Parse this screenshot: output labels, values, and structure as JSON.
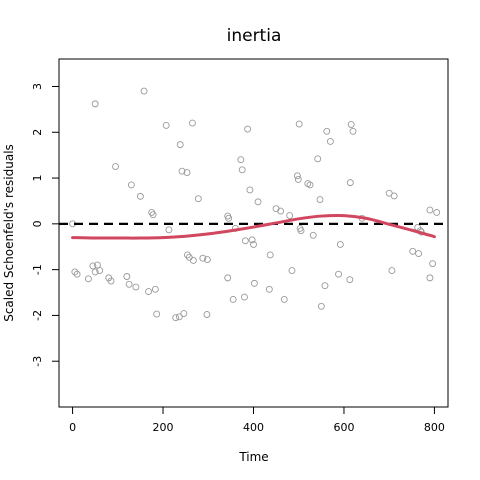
{
  "chart_data": {
    "type": "scatter",
    "title": "inertia",
    "xlabel": "Time",
    "ylabel": "Scaled Schoenfeld's residuals",
    "xlim": [
      -30,
      830
    ],
    "ylim": [
      -4,
      3.6
    ],
    "x_ticks": [
      0,
      200,
      400,
      600,
      800
    ],
    "y_ticks": [
      -3,
      -2,
      -1,
      0,
      1,
      2,
      3
    ],
    "grid": false,
    "reference_line_y": 0,
    "colors": {
      "points": "#9a9a9a",
      "smooth": "#d1475f",
      "reference": "#000000"
    },
    "points": [
      {
        "x": 0,
        "y": 0.0
      },
      {
        "x": 5,
        "y": -1.05
      },
      {
        "x": 10,
        "y": -1.1
      },
      {
        "x": 35,
        "y": -1.2
      },
      {
        "x": 45,
        "y": -0.92
      },
      {
        "x": 50,
        "y": 2.62
      },
      {
        "x": 50,
        "y": -1.05
      },
      {
        "x": 55,
        "y": -0.9
      },
      {
        "x": 60,
        "y": -1.02
      },
      {
        "x": 80,
        "y": -1.18
      },
      {
        "x": 85,
        "y": -1.25
      },
      {
        "x": 95,
        "y": 1.25
      },
      {
        "x": 120,
        "y": -1.15
      },
      {
        "x": 125,
        "y": -1.32
      },
      {
        "x": 130,
        "y": 0.85
      },
      {
        "x": 140,
        "y": -1.38
      },
      {
        "x": 150,
        "y": 0.6
      },
      {
        "x": 158,
        "y": 2.9
      },
      {
        "x": 168,
        "y": -1.48
      },
      {
        "x": 175,
        "y": 0.25
      },
      {
        "x": 178,
        "y": 0.2
      },
      {
        "x": 183,
        "y": -1.43
      },
      {
        "x": 186,
        "y": -1.97
      },
      {
        "x": 207,
        "y": 2.15
      },
      {
        "x": 213,
        "y": -0.13
      },
      {
        "x": 228,
        "y": -2.05
      },
      {
        "x": 236,
        "y": -2.03
      },
      {
        "x": 238,
        "y": 1.73
      },
      {
        "x": 242,
        "y": 1.15
      },
      {
        "x": 246,
        "y": -1.96
      },
      {
        "x": 253,
        "y": 1.12
      },
      {
        "x": 254,
        "y": -0.68
      },
      {
        "x": 258,
        "y": -0.73
      },
      {
        "x": 265,
        "y": 2.2
      },
      {
        "x": 267,
        "y": -0.8
      },
      {
        "x": 278,
        "y": 0.55
      },
      {
        "x": 288,
        "y": -0.75
      },
      {
        "x": 297,
        "y": -1.98
      },
      {
        "x": 298,
        "y": -0.78
      },
      {
        "x": 343,
        "y": -1.18
      },
      {
        "x": 343,
        "y": 0.17
      },
      {
        "x": 345,
        "y": 0.12
      },
      {
        "x": 355,
        "y": -1.65
      },
      {
        "x": 360,
        "y": -0.1
      },
      {
        "x": 372,
        "y": 1.4
      },
      {
        "x": 375,
        "y": 1.18
      },
      {
        "x": 380,
        "y": -1.6
      },
      {
        "x": 382,
        "y": -0.37
      },
      {
        "x": 387,
        "y": 2.07
      },
      {
        "x": 392,
        "y": 0.74
      },
      {
        "x": 397,
        "y": -0.35
      },
      {
        "x": 400,
        "y": -0.45
      },
      {
        "x": 402,
        "y": -1.3
      },
      {
        "x": 410,
        "y": 0.48
      },
      {
        "x": 435,
        "y": -1.43
      },
      {
        "x": 437,
        "y": -0.68
      },
      {
        "x": 450,
        "y": 0.33
      },
      {
        "x": 460,
        "y": 0.28
      },
      {
        "x": 468,
        "y": -1.65
      },
      {
        "x": 480,
        "y": 0.18
      },
      {
        "x": 485,
        "y": -1.02
      },
      {
        "x": 497,
        "y": 1.05
      },
      {
        "x": 499,
        "y": 0.97
      },
      {
        "x": 501,
        "y": 2.18
      },
      {
        "x": 503,
        "y": -0.1
      },
      {
        "x": 505,
        "y": -0.15
      },
      {
        "x": 520,
        "y": 0.88
      },
      {
        "x": 525,
        "y": 0.85
      },
      {
        "x": 532,
        "y": -0.25
      },
      {
        "x": 542,
        "y": 1.42
      },
      {
        "x": 547,
        "y": 0.53
      },
      {
        "x": 550,
        "y": -1.8
      },
      {
        "x": 558,
        "y": -1.35
      },
      {
        "x": 562,
        "y": 2.02
      },
      {
        "x": 570,
        "y": 1.8
      },
      {
        "x": 588,
        "y": -1.1
      },
      {
        "x": 592,
        "y": -0.45
      },
      {
        "x": 613,
        "y": -1.22
      },
      {
        "x": 614,
        "y": 0.9
      },
      {
        "x": 616,
        "y": 2.17
      },
      {
        "x": 620,
        "y": 2.02
      },
      {
        "x": 640,
        "y": 0.12
      },
      {
        "x": 700,
        "y": 0.67
      },
      {
        "x": 706,
        "y": -1.02
      },
      {
        "x": 711,
        "y": 0.61
      },
      {
        "x": 752,
        "y": -0.6
      },
      {
        "x": 763,
        "y": -0.08
      },
      {
        "x": 765,
        "y": -0.65
      },
      {
        "x": 769,
        "y": -0.15
      },
      {
        "x": 771,
        "y": -0.18
      },
      {
        "x": 790,
        "y": 0.3
      },
      {
        "x": 790,
        "y": -1.18
      },
      {
        "x": 796,
        "y": -0.87
      },
      {
        "x": 805,
        "y": 0.25
      }
    ],
    "smooth": {
      "x": [
        0,
        50,
        100,
        150,
        200,
        250,
        300,
        350,
        400,
        450,
        500,
        550,
        600,
        650,
        700,
        750,
        800
      ],
      "y": [
        -0.3,
        -0.31,
        -0.31,
        -0.31,
        -0.3,
        -0.27,
        -0.22,
        -0.15,
        -0.07,
        0.02,
        0.11,
        0.17,
        0.18,
        0.12,
        -0.01,
        -0.14,
        -0.28
      ]
    }
  }
}
